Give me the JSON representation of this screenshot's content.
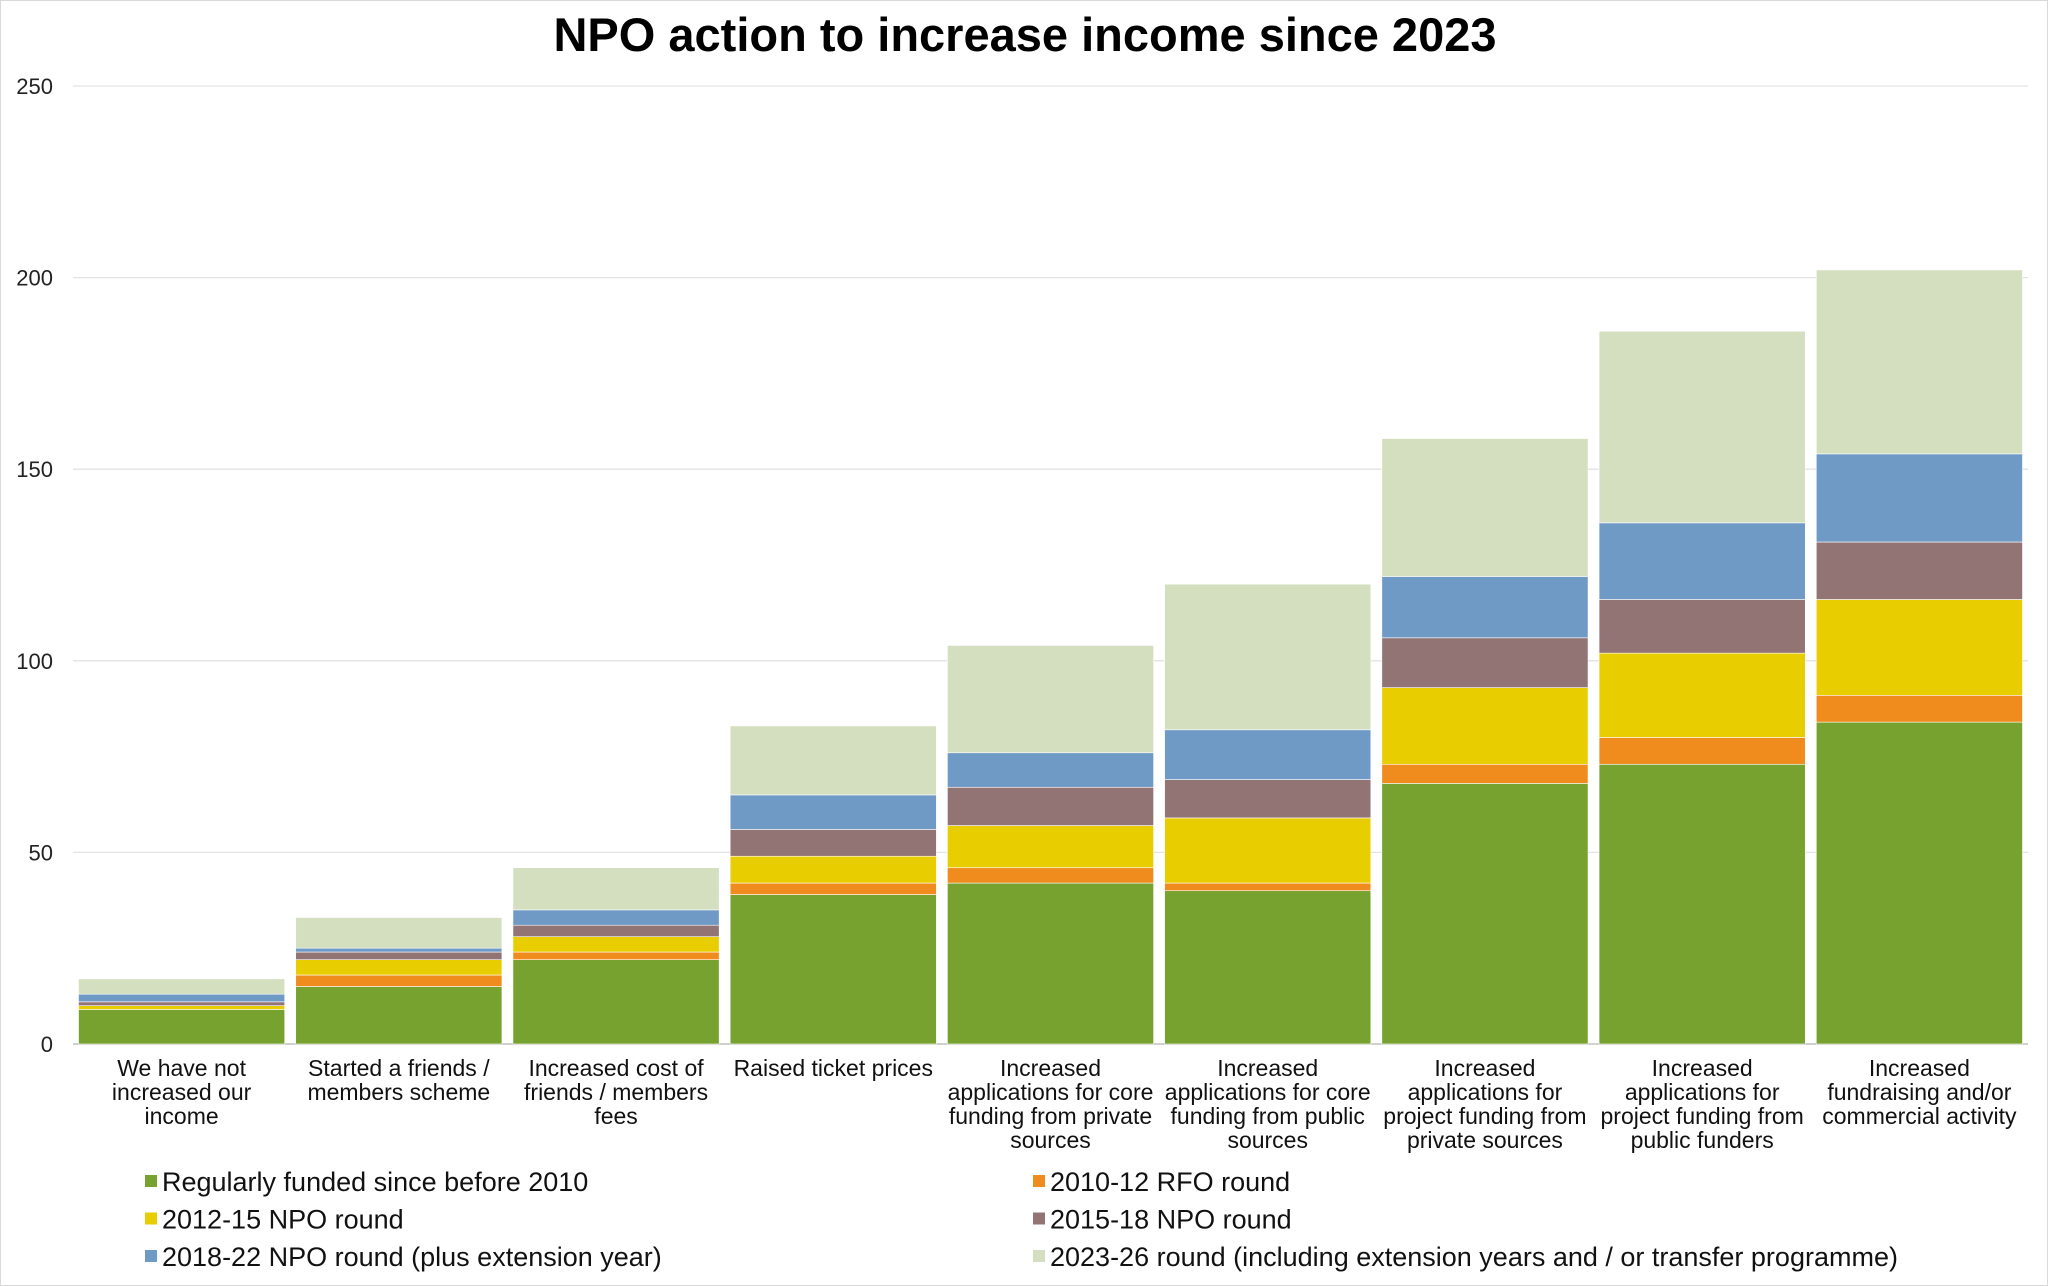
{
  "chart_data": {
    "type": "bar",
    "stacked": true,
    "title": "NPO action to increase income since 2023",
    "xlabel": "",
    "ylabel": "",
    "ylim": [
      0,
      250
    ],
    "yticks": [
      0,
      50,
      100,
      150,
      200,
      250
    ],
    "grid": true,
    "legend_position": "bottom",
    "categories": [
      [
        "We have not",
        "increased our",
        "income"
      ],
      [
        "Started a friends /",
        "members scheme"
      ],
      [
        "Increased cost of",
        "friends / members",
        "fees"
      ],
      [
        "Raised ticket prices"
      ],
      [
        "Increased",
        "applications for core",
        "funding from private",
        "sources"
      ],
      [
        "Increased",
        "applications for core",
        "funding from public",
        "sources"
      ],
      [
        "Increased",
        "applications for",
        "project funding from",
        "private sources"
      ],
      [
        "Increased",
        "applications for",
        "project funding from",
        "public funders"
      ],
      [
        "Increased",
        "fundraising and/or",
        "commercial activity"
      ]
    ],
    "series": [
      {
        "name": "Regularly funded since before 2010",
        "color": "#77a22f",
        "values": [
          9,
          15,
          22,
          39,
          42,
          40,
          68,
          73,
          84
        ]
      },
      {
        "name": "2010-12 RFO round",
        "color": "#f08c1e",
        "values": [
          0,
          3,
          2,
          3,
          4,
          2,
          5,
          7,
          7
        ]
      },
      {
        "name": "2012-15 NPO round",
        "color": "#e8cd00",
        "values": [
          1,
          4,
          4,
          7,
          11,
          17,
          20,
          22,
          25
        ]
      },
      {
        "name": "2015-18 NPO round",
        "color": "#927474",
        "values": [
          1,
          2,
          3,
          7,
          10,
          10,
          13,
          14,
          15
        ]
      },
      {
        "name": "2018-22 NPO round (plus extension year)",
        "color": "#6f9ac6",
        "values": [
          2,
          1,
          4,
          9,
          9,
          13,
          16,
          20,
          23
        ]
      },
      {
        "name": "2023-26 round (including extension years and / or transfer programme)",
        "color": "#d4dfc0",
        "values": [
          4,
          8,
          11,
          18,
          28,
          38,
          36,
          50,
          48
        ]
      }
    ]
  }
}
